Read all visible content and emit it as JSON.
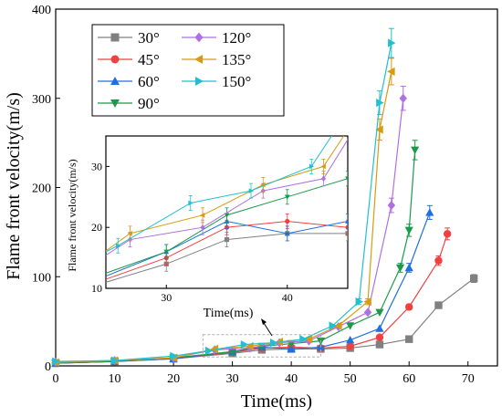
{
  "chart_data": {
    "type": "line",
    "xlabel": "Time(ms)",
    "ylabel": "Flame front velocity(m/s)",
    "xlim": [
      0,
      75
    ],
    "ylim": [
      0,
      400
    ],
    "xticks": [
      0,
      10,
      20,
      30,
      40,
      50,
      60,
      70
    ],
    "yticks": [
      0,
      100,
      200,
      300,
      400
    ],
    "grid": false,
    "legend_position": "top-left",
    "series": [
      {
        "name": "30°",
        "color": "#808080",
        "marker": "square",
        "x": [
          0,
          10,
          20,
          30,
          35,
          40,
          45,
          50,
          55,
          60,
          65,
          71
        ],
        "y": [
          3,
          5,
          8,
          14,
          18,
          19,
          19,
          20,
          24,
          30,
          68,
          98
        ]
      },
      {
        "name": "45°",
        "color": "#f04040",
        "marker": "circle",
        "x": [
          0,
          10,
          20,
          30,
          35,
          40,
          45,
          50,
          55,
          60,
          65,
          66.5
        ],
        "y": [
          3,
          5,
          8,
          15,
          20,
          21,
          20,
          22,
          32,
          66,
          118,
          148
        ]
      },
      {
        "name": "60°",
        "color": "#1f6fe0",
        "marker": "triangle-up",
        "x": [
          0,
          10,
          20,
          30,
          35,
          40,
          45,
          50,
          55,
          60,
          63.5
        ],
        "y": [
          3,
          5,
          8,
          16,
          21,
          19,
          21,
          29,
          42,
          110,
          172
        ]
      },
      {
        "name": "90°",
        "color": "#1a9a4a",
        "marker": "triangle-down",
        "x": [
          0,
          10,
          20,
          30,
          35,
          40,
          45,
          50,
          55,
          58.5,
          60,
          61
        ],
        "y": [
          3,
          5,
          9,
          16,
          22,
          25,
          28,
          45,
          60,
          110,
          152,
          242
        ]
      },
      {
        "name": "120°",
        "color": "#b070e0",
        "marker": "diamond",
        "x": [
          0,
          10,
          20,
          27,
          33,
          38,
          43,
          48,
          53,
          57,
          59
        ],
        "y": [
          4,
          6,
          9,
          18,
          20,
          26,
          28,
          44,
          60,
          180,
          300
        ]
      },
      {
        "name": "135°",
        "color": "#d89a10",
        "marker": "triangle-left",
        "x": [
          0,
          10,
          20,
          27,
          33,
          38,
          43,
          48,
          53,
          55,
          57
        ],
        "y": [
          4,
          6,
          9,
          19,
          22,
          27,
          30,
          45,
          72,
          265,
          330
        ]
      },
      {
        "name": "150°",
        "color": "#20c0d0",
        "marker": "triangle-right",
        "x": [
          0,
          10,
          20,
          26,
          32,
          37,
          42,
          47,
          51.5,
          55,
          57
        ],
        "y": [
          5,
          6,
          11,
          17,
          24,
          26,
          30,
          45,
          72,
          295,
          362
        ]
      }
    ],
    "inset": {
      "xlim": [
        25,
        45
      ],
      "ylim": [
        10,
        35
      ],
      "xticks": [
        30,
        40
      ],
      "yticks": [
        10,
        20,
        30
      ],
      "xlabel": "Time(ms)",
      "ylabel": "Flame front velocity(m/s)"
    }
  }
}
